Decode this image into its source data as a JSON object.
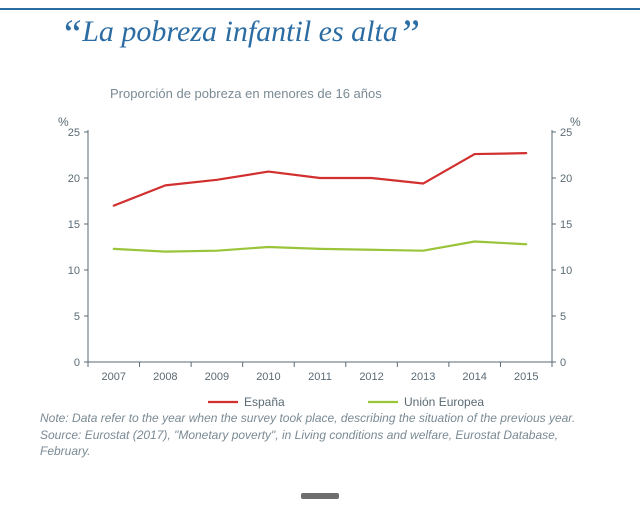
{
  "title": "La pobreza infantil es alta",
  "subtitle": "Proporción de pobreza en menores de 16 años",
  "footnote_note_label": "Note:",
  "footnote_note": " Data refer to the year when the survey took place, describing the situation of the previous year.",
  "footnote_source_label": "Source:",
  "footnote_source": " Eurostat (2017), \"Monetary poverty\", in Living conditions and welfare, Eurostat Database, February.",
  "chart": {
    "type": "line",
    "y_axis_label": "%",
    "y_axis_label_right": "%",
    "ylim": [
      0,
      25
    ],
    "ytick_step": 5,
    "yticks": [
      0,
      5,
      10,
      15,
      20,
      25
    ],
    "categories": [
      "2007",
      "2008",
      "2009",
      "2010",
      "2011",
      "2012",
      "2013",
      "2014",
      "2015"
    ],
    "grid_color": "#c8d0d6",
    "axis_color": "#5a6a74",
    "background_color": "#ffffff",
    "line_width": 2.2,
    "series": [
      {
        "name": "España",
        "color": "#d22f2f",
        "values": [
          17.0,
          19.2,
          19.8,
          20.7,
          20.0,
          20.0,
          19.4,
          22.6,
          22.7
        ]
      },
      {
        "name": "Unión Europea",
        "color": "#9ac43a",
        "values": [
          12.3,
          12.0,
          12.1,
          12.5,
          12.3,
          12.2,
          12.1,
          13.1,
          12.8
        ]
      }
    ],
    "legend": {
      "items": [
        "España",
        "Unión Europea"
      ],
      "colors": [
        "#d22f2f",
        "#9ac43a"
      ]
    },
    "logo_colors": {
      "left": "#3bb3e4",
      "right": "#2a5f8f"
    }
  }
}
